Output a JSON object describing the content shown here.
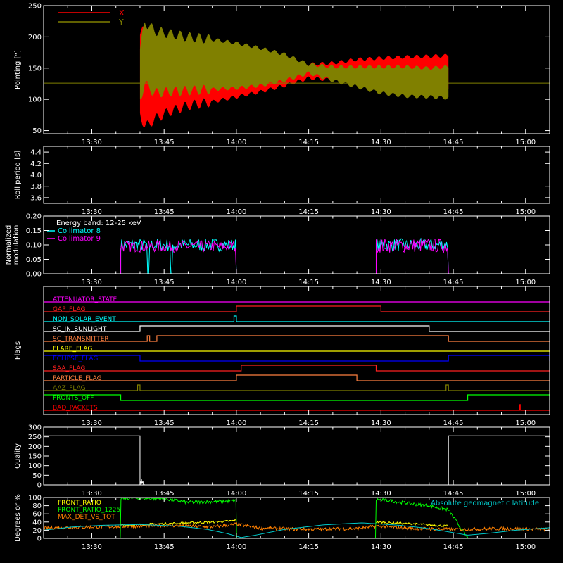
{
  "figure": {
    "background": "#000000",
    "foreground": "#ffffff",
    "time_ticks": [
      "13:30",
      "13:45",
      "14:00",
      "14:15",
      "14:30",
      "14:45",
      "15:00"
    ],
    "time_tick_minutes": [
      30,
      45,
      60,
      75,
      90,
      105,
      120
    ],
    "x_range_minutes": [
      20,
      125
    ]
  },
  "chart_data": [
    {
      "id": "pointing",
      "type": "area",
      "ylabel": "Pointing [\"]",
      "ylim": [
        45,
        250
      ],
      "yticks": [
        "50",
        "100",
        "150",
        "200",
        "250"
      ],
      "ytick_values": [
        50,
        100,
        150,
        200,
        250
      ],
      "legend": {
        "placement": "top-left"
      },
      "series": [
        {
          "name": "X",
          "color": "#ff0000",
          "x": [
            40,
            41,
            43,
            46,
            50,
            55,
            60,
            65,
            70,
            75,
            80,
            85,
            90,
            95,
            100,
            104
          ],
          "upper": [
            203,
            214,
            200,
            190,
            180,
            174,
            168,
            163,
            158,
            156,
            158,
            164,
            166,
            168,
            169,
            170
          ],
          "lower": [
            78,
            55,
            68,
            80,
            90,
            96,
            104,
            112,
            122,
            134,
            131,
            128,
            126,
            122,
            120,
            115
          ]
        },
        {
          "name": "Y",
          "color": "#808000",
          "x": [
            40,
            41,
            43,
            46,
            50,
            55,
            60,
            65,
            70,
            75,
            80,
            85,
            90,
            95,
            100,
            104
          ],
          "upper": [
            180,
            224,
            210,
            205,
            200,
            196,
            190,
            182,
            172,
            156,
            152,
            152,
            152,
            152,
            150,
            152
          ],
          "lower": [
            100,
            125,
            110,
            112,
            114,
            116,
            118,
            122,
            130,
            142,
            130,
            120,
            110,
            105,
            104,
            102
          ]
        }
      ],
      "reference_line": {
        "y": 126,
        "color": "#808000"
      }
    },
    {
      "id": "roll-period",
      "type": "line",
      "ylabel": "Roll period [s]",
      "ylim": [
        3.5,
        4.5
      ],
      "yticks": [
        "3.6",
        "3.8",
        "4.0",
        "4.2",
        "4.4"
      ],
      "ytick_values": [
        3.6,
        3.8,
        4.0,
        4.2,
        4.4
      ],
      "series": [
        {
          "name": "",
          "color": "#ffffff",
          "x": [
            20,
            125
          ],
          "y": [
            4.0,
            4.0
          ]
        }
      ]
    },
    {
      "id": "modulation",
      "type": "line",
      "ylabel": "Normalized modulation",
      "ylim": [
        0.0,
        0.2
      ],
      "yticks": [
        "0.00",
        "0.05",
        "0.10",
        "0.15",
        "0.20"
      ],
      "ytick_values": [
        0.0,
        0.05,
        0.1,
        0.15,
        0.2
      ],
      "annotation": "Energy band: 12-25 keV",
      "legend": {
        "placement": "top-left"
      },
      "series": [
        {
          "name": "Collimator 8",
          "color": "#00ffff",
          "segments": [
            {
              "x": [
                36,
                60
              ],
              "level": 0.1,
              "spread": 0.022
            },
            {
              "x": [
                89,
                104
              ],
              "level": 0.1,
              "spread": 0.022
            }
          ]
        },
        {
          "name": "Collimator 9",
          "color": "#ff00ff",
          "segments": [
            {
              "x": [
                36,
                60
              ],
              "level": 0.095,
              "spread": 0.02
            },
            {
              "x": [
                89,
                104
              ],
              "level": 0.098,
              "spread": 0.025
            }
          ]
        }
      ]
    },
    {
      "id": "flags",
      "type": "line",
      "ylabel": "Flags",
      "flags": [
        {
          "name": "ATTENUATOR_STATE",
          "color": "#ff00ff",
          "highs": []
        },
        {
          "name": "GAP_FLAG",
          "color": "#ff2020",
          "highs": [
            [
              60,
              90
            ]
          ]
        },
        {
          "name": "NON_SOLAR_EVENT",
          "color": "#00ffff",
          "highs": [
            [
              59.5,
              60
            ]
          ]
        },
        {
          "name": "SC_IN_SUNLIGHT",
          "color": "#ffffff",
          "highs": [
            [
              40,
              100
            ]
          ]
        },
        {
          "name": "SC_TRANSMITTER",
          "color": "#ff8040",
          "highs": [
            [
              41.5,
              42
            ],
            [
              43.5,
              104
            ]
          ]
        },
        {
          "name": "FLARE_FLAG",
          "color": "#ffff00",
          "highs": []
        },
        {
          "name": "ECLIPSE_FLAG",
          "color": "#0000ff",
          "highs": [
            [
              20,
              40
            ],
            [
              104,
              125
            ]
          ]
        },
        {
          "name": "SAA_FLAG",
          "color": "#ff2020",
          "highs": [
            [
              61,
              89
            ]
          ]
        },
        {
          "name": "PARTICLE_FLAG",
          "color": "#ff8040",
          "highs": [
            [
              60,
              85
            ]
          ]
        },
        {
          "name": "AAZ_FLAG",
          "color": "#808000",
          "highs": [
            [
              39.5,
              40
            ],
            [
              103.5,
              104
            ]
          ]
        },
        {
          "name": "FRONTS_OFF",
          "color": "#00ff00",
          "highs": [
            [
              20,
              36
            ],
            [
              108,
              125
            ]
          ]
        },
        {
          "name": "BAD_PACKETS",
          "color": "#ff0000",
          "highs": [
            [
              118.8,
              119
            ]
          ]
        }
      ]
    },
    {
      "id": "quality",
      "type": "line",
      "ylabel": "Quality",
      "ylim": [
        0,
        300
      ],
      "yticks": [
        "0",
        "50",
        "100",
        "150",
        "200",
        "250",
        "300"
      ],
      "ytick_values": [
        0,
        50,
        100,
        150,
        200,
        250,
        300
      ],
      "series": [
        {
          "name": "",
          "color": "#ffffff",
          "x": [
            20,
            40,
            40,
            40.3,
            40.4,
            40.6,
            40.7,
            41,
            104,
            104,
            125
          ],
          "y": [
            255,
            255,
            0,
            30,
            5,
            20,
            3,
            0,
            0,
            255,
            255
          ]
        }
      ]
    },
    {
      "id": "ratios",
      "type": "line",
      "ylabel": "Degrees or %",
      "ylim": [
        0,
        100
      ],
      "yticks": [
        "0",
        "20",
        "40",
        "60",
        "80",
        "100"
      ],
      "ytick_values": [
        0,
        20,
        40,
        60,
        80,
        100
      ],
      "legend": {
        "placement": "top-left"
      },
      "annotation": "Absolute geomagnetic latitude",
      "series": [
        {
          "name": "FRONT_RATIO",
          "color": "#ffff00",
          "x": [
            36,
            40,
            45,
            50,
            55,
            58,
            60,
            89,
            92,
            96,
            100,
            104
          ],
          "y": [
            32,
            34,
            36,
            38,
            40,
            42,
            44,
            40,
            38,
            36,
            33,
            30
          ]
        },
        {
          "name": "FRONT_RATIO_1225",
          "color": "#00ff00",
          "x": [
            20,
            36,
            36,
            40,
            45,
            50,
            55,
            60,
            60,
            89,
            89,
            92,
            96,
            100,
            104,
            108,
            108,
            125
          ],
          "y": [
            0,
            0,
            98,
            98,
            97,
            88,
            90,
            92,
            0,
            0,
            95,
            92,
            85,
            80,
            70,
            0,
            0,
            0
          ]
        },
        {
          "name": "MAX_DET_VS_TOT",
          "color": "#ff8000",
          "x": [
            20,
            30,
            40,
            45,
            50,
            55,
            60,
            65,
            75,
            85,
            89,
            95,
            105,
            115,
            125
          ],
          "y": [
            25,
            28,
            30,
            32,
            30,
            28,
            35,
            25,
            22,
            24,
            30,
            25,
            22,
            24,
            22
          ]
        },
        {
          "name": "Absolute geomagnetic latitude",
          "color": "#00c8c8",
          "x": [
            20,
            26,
            32,
            40,
            48,
            54,
            58,
            61,
            64,
            70,
            78,
            86,
            94,
            100,
            104,
            108,
            112,
            118,
            125
          ],
          "y": [
            20,
            28,
            32,
            34,
            30,
            22,
            12,
            2,
            8,
            22,
            33,
            38,
            32,
            24,
            16,
            8,
            12,
            20,
            26
          ]
        }
      ]
    }
  ]
}
